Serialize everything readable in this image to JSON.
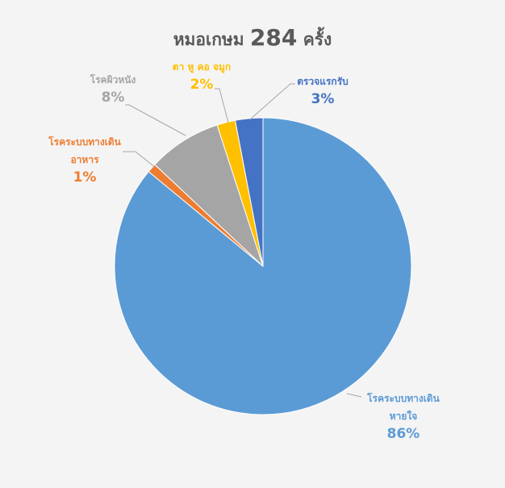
{
  "chart_data": {
    "type": "pie",
    "title_prefix": "หมอเกษม",
    "title_number": "284",
    "title_suffix": "ครั้ง",
    "start_angle": "top",
    "direction": "clockwise",
    "slices": [
      {
        "label_line1": "โรคระบบทางเดิน",
        "label_line2": "หายใจ",
        "value": 86,
        "pct_label": "86%",
        "color": "#5B9BD5"
      },
      {
        "label_line1": "โรคระบบทางเดิน",
        "label_line2": "อาหาร",
        "value": 1,
        "pct_label": "1%",
        "color": "#ED7D31"
      },
      {
        "label_line1": "โรคผิวหนัง",
        "label_line2": "",
        "value": 8,
        "pct_label": "8%",
        "color": "#A5A5A5"
      },
      {
        "label_line1": "ตา หู คอ จมูก",
        "label_line2": "",
        "value": 2,
        "pct_label": "2%",
        "color": "#FFC000"
      },
      {
        "label_line1": "ตรวจแรกรับ",
        "label_line2": "",
        "value": 3,
        "pct_label": "3%",
        "color": "#4472C4"
      }
    ],
    "legend": "none"
  }
}
